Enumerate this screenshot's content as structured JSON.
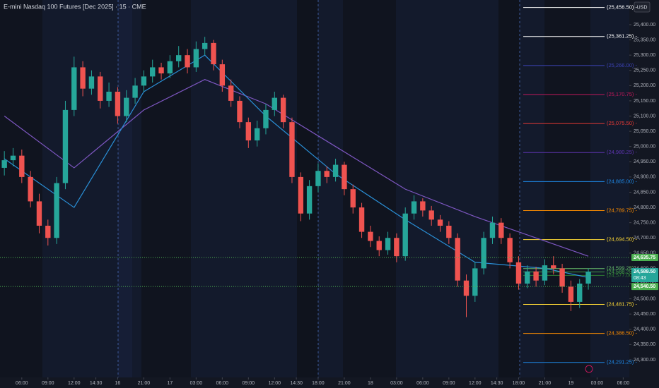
{
  "chart_data": {
    "type": "candlestick",
    "title": "E-mini Nasdaq 100 Futures [Dec 2025] · 15 · CME",
    "currency": "USD",
    "up_color": "#26a69a",
    "down_color": "#ef5350",
    "open": [
      24930,
      24955,
      24970,
      24900,
      24820,
      24740,
      24700,
      24880,
      25120,
      25260,
      25190,
      25230,
      25150,
      25180,
      25100,
      25160,
      25200,
      25230,
      25260,
      25240,
      25280,
      25300,
      25260,
      25320,
      25340,
      25270,
      25200,
      25150,
      25080,
      25020,
      25060,
      25120,
      25160,
      25080,
      24900,
      24780,
      24870,
      24920,
      24900,
      24940,
      24860,
      24800,
      24720,
      24690,
      24660,
      24700,
      24640,
      24780,
      24820,
      24790,
      24760,
      24740,
      24700,
      24560,
      24510,
      24600,
      24700,
      24750,
      24700,
      24620,
      24550,
      24590,
      24560,
      24610,
      24600,
      24540,
      24490,
      24550
    ],
    "high": [
      24985,
      24995,
      24990,
      24920,
      24845,
      24760,
      24900,
      25150,
      25295,
      25280,
      25250,
      25245,
      25210,
      25195,
      25185,
      25225,
      25250,
      25285,
      25275,
      25300,
      25330,
      25320,
      25345,
      25360,
      25350,
      25285,
      25220,
      25165,
      25095,
      25085,
      25140,
      25180,
      25170,
      25095,
      24915,
      24890,
      24945,
      24935,
      24960,
      24950,
      24875,
      24815,
      24740,
      24705,
      24720,
      24715,
      24800,
      24840,
      24830,
      24805,
      24775,
      24755,
      24715,
      24580,
      24620,
      24720,
      24770,
      24765,
      24715,
      24640,
      24610,
      24605,
      24630,
      24640,
      24615,
      24560,
      24565,
      24600
    ],
    "low": [
      24905,
      24935,
      24880,
      24800,
      24715,
      24675,
      24680,
      24860,
      25100,
      25165,
      25170,
      25125,
      25130,
      25075,
      25080,
      25140,
      25180,
      25210,
      25220,
      25225,
      25260,
      25240,
      25245,
      25300,
      25250,
      25180,
      25130,
      25060,
      24995,
      25000,
      25040,
      25100,
      25060,
      24880,
      24755,
      24760,
      24850,
      24880,
      24885,
      24840,
      24780,
      24700,
      24670,
      24640,
      24645,
      24620,
      24625,
      24760,
      24770,
      24740,
      24720,
      24680,
      24540,
      24440,
      24490,
      24580,
      24680,
      24680,
      24600,
      24530,
      24535,
      24540,
      24545,
      24580,
      24520,
      24460,
      24470,
      24530
    ],
    "close": [
      24955,
      24970,
      24900,
      24820,
      24740,
      24700,
      24880,
      25120,
      25260,
      25190,
      25230,
      25150,
      25180,
      25100,
      25160,
      25200,
      25230,
      25260,
      25240,
      25280,
      25300,
      25260,
      25320,
      25340,
      25270,
      25200,
      25150,
      25080,
      25020,
      25060,
      25120,
      25160,
      25080,
      24900,
      24780,
      24870,
      24920,
      24900,
      24940,
      24860,
      24800,
      24720,
      24690,
      24660,
      24700,
      24640,
      24780,
      24820,
      24790,
      24760,
      24740,
      24700,
      24560,
      24510,
      24600,
      24700,
      24750,
      24700,
      24620,
      24550,
      24590,
      24560,
      24610,
      24600,
      24540,
      24490,
      24550,
      24589.5
    ],
    "series": [
      {
        "color": "#7e57c2",
        "x": [
          0,
          8,
          16,
          23,
          30,
          38,
          46,
          54,
          62,
          67
        ],
        "values": [
          25100,
          24930,
          25120,
          25220,
          25140,
          25000,
          24860,
          24770,
          24690,
          24640
        ]
      },
      {
        "color": "#2a8fd6",
        "x": [
          0,
          8,
          16,
          23,
          30,
          38,
          46,
          54,
          62,
          67
        ],
        "values": [
          24960,
          24800,
          25180,
          25300,
          25100,
          24910,
          24760,
          24620,
          24600,
          24570
        ]
      }
    ],
    "xlim": [
      -0.5,
      71.7
    ],
    "xticks": [
      {
        "value": 2,
        "label": "06:00"
      },
      {
        "value": 5,
        "label": "09:00"
      },
      {
        "value": 8,
        "label": "12:00"
      },
      {
        "value": 10.5,
        "label": "14:30"
      },
      {
        "value": 13,
        "label": "16"
      },
      {
        "value": 16,
        "label": "21:00"
      },
      {
        "value": 19,
        "label": "17"
      },
      {
        "value": 22,
        "label": "03:00"
      },
      {
        "value": 25,
        "label": "06:00"
      },
      {
        "value": 28,
        "label": "09:00"
      },
      {
        "value": 31,
        "label": "12:00"
      },
      {
        "value": 33.5,
        "label": "14:30"
      },
      {
        "value": 36,
        "label": "18:00"
      },
      {
        "value": 39,
        "label": "21:00"
      },
      {
        "value": 42,
        "label": "18"
      },
      {
        "value": 45,
        "label": "03:00"
      },
      {
        "value": 48,
        "label": "06:00"
      },
      {
        "value": 51,
        "label": "09:00"
      },
      {
        "value": 54,
        "label": "12:00"
      },
      {
        "value": 56.5,
        "label": "14:30"
      },
      {
        "value": 59,
        "label": "18:00"
      },
      {
        "value": 62,
        "label": "21:00"
      },
      {
        "value": 65,
        "label": "19"
      },
      {
        "value": 68,
        "label": "03:00"
      },
      {
        "value": 71,
        "label": "06:00"
      }
    ],
    "ylim": [
      24242,
      25481
    ],
    "yticks": [
      {
        "value": 24300,
        "label": "24,300.00"
      },
      {
        "value": 24350,
        "label": "24,350.00"
      },
      {
        "value": 24400,
        "label": "24,400.00"
      },
      {
        "value": 24450,
        "label": "24,450.00"
      },
      {
        "value": 24500,
        "label": "24,500.00"
      },
      {
        "value": 24550,
        "label": "24,550.00"
      },
      {
        "value": 24600,
        "label": "24,600.00"
      },
      {
        "value": 24650,
        "label": "24,650.00"
      },
      {
        "value": 24700,
        "label": "24,700.00"
      },
      {
        "value": 24750,
        "label": "24,750.00"
      },
      {
        "value": 24800,
        "label": "24,800.00"
      },
      {
        "value": 24850,
        "label": "24,850.00"
      },
      {
        "value": 24900,
        "label": "24,900.00"
      },
      {
        "value": 24950,
        "label": "24,950.00"
      },
      {
        "value": 25000,
        "label": "25,000.00"
      },
      {
        "value": 25050,
        "label": "25,050.00"
      },
      {
        "value": 25100,
        "label": "25,100.00"
      },
      {
        "value": 25150,
        "label": "25,150.00"
      },
      {
        "value": 25200,
        "label": "25,200.00"
      },
      {
        "value": 25250,
        "label": "25,250.00"
      },
      {
        "value": 25300,
        "label": "25,300.00"
      },
      {
        "value": 25350,
        "label": "25,350.00"
      },
      {
        "value": 25400,
        "label": "25,400.00"
      }
    ],
    "levels": [
      {
        "value": 25456.5,
        "label": "(25,456.50) -",
        "color": "#ffffff"
      },
      {
        "value": 25361.25,
        "label": "(25,361.25) -",
        "color": "#ffffff"
      },
      {
        "value": 25266,
        "label": "(25,266.00) -",
        "color": "#3d43b8"
      },
      {
        "value": 25170.75,
        "label": "(25,170.75) -",
        "color": "#c2185b"
      },
      {
        "value": 25075.5,
        "label": "(25,075.50) -",
        "color": "#e53935"
      },
      {
        "value": 24980.25,
        "label": "(24,980.25) -",
        "color": "#5e35b1"
      },
      {
        "value": 24885,
        "label": "(24,885.00) -",
        "color": "#1e88e5"
      },
      {
        "value": 24789.75,
        "label": "(24,789.75) -",
        "color": "#fb8c00"
      },
      {
        "value": 24694.5,
        "label": "(24,694.50) -",
        "color": "#fdd835"
      },
      {
        "value": 24599.25,
        "label": "(24,599.25) -",
        "color": "#66bb6a"
      },
      {
        "value": 24588.25,
        "label": "(24,588.25) -",
        "color": "#43a047"
      },
      {
        "value": 24577,
        "label": "(24,577.00) -",
        "color": "#2e7d32"
      },
      {
        "value": 24481.75,
        "label": "(24,481.75) -",
        "color": "#fdd835"
      },
      {
        "value": 24386.5,
        "label": "(24,386.50) -",
        "color": "#fb8c00"
      },
      {
        "value": 24291.25,
        "label": "(24,291.25) -",
        "color": "#1e88e5"
      }
    ],
    "price_badges": [
      {
        "value": 24635.75,
        "label": "24,635.75",
        "color": "#4caf50",
        "line": true
      },
      {
        "value": 24589.5,
        "label": "24,589.50",
        "color": "#26a69a",
        "line": false,
        "countdown": "08:43"
      },
      {
        "value": 24540.5,
        "label": "24,540.50",
        "color": "#4caf50",
        "line": true
      }
    ]
  }
}
